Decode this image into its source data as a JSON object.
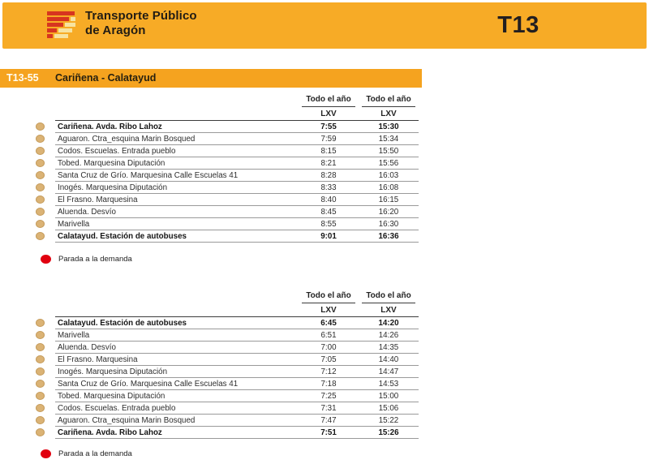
{
  "header": {
    "brand_line1": "Transporte Público",
    "brand_line2": "de Aragón",
    "route_code": "T13"
  },
  "route": {
    "line_code": "T13-55",
    "name": "Cariñena - Calatayud"
  },
  "legend": {
    "on_demand_label": "Parada a la demanda"
  },
  "colors": {
    "banner_orange": "#F7AB26",
    "route_bar_orange": "#F5A31F",
    "logo_red": "#D7351F",
    "logo_pale": "#F7E3A0",
    "stop_bullet": "#DBB375",
    "demand_red": "#E1000F"
  },
  "tables": [
    {
      "direction": "outbound",
      "columns": [
        {
          "season": "Todo el año",
          "days": "LXV"
        },
        {
          "season": "Todo el año",
          "days": "LXV"
        }
      ],
      "rows": [
        {
          "stop": "Cariñena. Avda. Ribo Lahoz",
          "times": [
            "7:55",
            "15:30"
          ],
          "bold": true
        },
        {
          "stop": "Aguaron. Ctra_esquina Marin Bosqued",
          "times": [
            "7:59",
            "15:34"
          ],
          "bold": false
        },
        {
          "stop": "Codos. Escuelas. Entrada pueblo",
          "times": [
            "8:15",
            "15:50"
          ],
          "bold": false
        },
        {
          "stop": "Tobed. Marquesina Diputación",
          "times": [
            "8:21",
            "15:56"
          ],
          "bold": false
        },
        {
          "stop": "Santa Cruz de Grío. Marquesina Calle Escuelas 41",
          "times": [
            "8:28",
            "16:03"
          ],
          "bold": false
        },
        {
          "stop": "Inogés. Marquesina Diputación",
          "times": [
            "8:33",
            "16:08"
          ],
          "bold": false
        },
        {
          "stop": "El Frasno. Marquesina",
          "times": [
            "8:40",
            "16:15"
          ],
          "bold": false
        },
        {
          "stop": "Aluenda. Desvío",
          "times": [
            "8:45",
            "16:20"
          ],
          "bold": false
        },
        {
          "stop": "Marivella",
          "times": [
            "8:55",
            "16:30"
          ],
          "bold": false
        },
        {
          "stop": "Calatayud. Estación de autobuses",
          "times": [
            "9:01",
            "16:36"
          ],
          "bold": true
        }
      ]
    },
    {
      "direction": "return",
      "columns": [
        {
          "season": "Todo el año",
          "days": "LXV"
        },
        {
          "season": "Todo el año",
          "days": "LXV"
        }
      ],
      "rows": [
        {
          "stop": "Calatayud. Estación de autobuses",
          "times": [
            "6:45",
            "14:20"
          ],
          "bold": true
        },
        {
          "stop": "Marivella",
          "times": [
            "6:51",
            "14:26"
          ],
          "bold": false
        },
        {
          "stop": "Aluenda. Desvío",
          "times": [
            "7:00",
            "14:35"
          ],
          "bold": false
        },
        {
          "stop": "El Frasno. Marquesina",
          "times": [
            "7:05",
            "14:40"
          ],
          "bold": false
        },
        {
          "stop": "Inogés. Marquesina Diputación",
          "times": [
            "7:12",
            "14:47"
          ],
          "bold": false
        },
        {
          "stop": "Santa Cruz de Grío. Marquesina Calle Escuelas 41",
          "times": [
            "7:18",
            "14:53"
          ],
          "bold": false
        },
        {
          "stop": "Tobed. Marquesina Diputación",
          "times": [
            "7:25",
            "15:00"
          ],
          "bold": false
        },
        {
          "stop": "Codos. Escuelas. Entrada pueblo",
          "times": [
            "7:31",
            "15:06"
          ],
          "bold": false
        },
        {
          "stop": "Aguaron. Ctra_esquina Marin Bosqued",
          "times": [
            "7:47",
            "15:22"
          ],
          "bold": false
        },
        {
          "stop": "Cariñena. Avda. Ribo Lahoz",
          "times": [
            "7:51",
            "15:26"
          ],
          "bold": true
        }
      ]
    }
  ]
}
